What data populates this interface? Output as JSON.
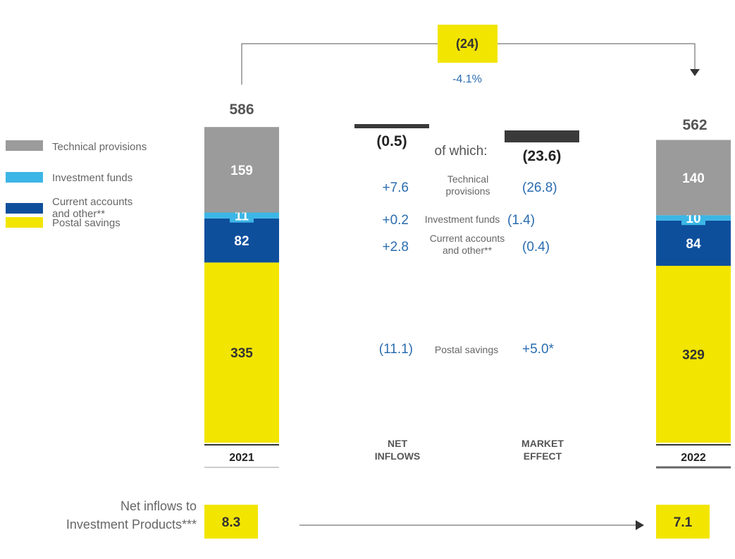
{
  "chart_data": {
    "type": "bar",
    "title": "",
    "stack_order": [
      "Postal savings",
      "Current accounts and other**",
      "Investment funds",
      "Technical provisions"
    ],
    "series": [
      {
        "name": "Technical provisions",
        "color": "#9b9b9b",
        "values": [
          159,
          140
        ],
        "label_color": "#ffffff"
      },
      {
        "name": "Investment funds",
        "color": "#3cb6e6",
        "values": [
          11,
          10
        ],
        "label_color": "#ffffff"
      },
      {
        "name": "Current accounts and other**",
        "color": "#0e4f9c",
        "values": [
          82,
          84
        ],
        "label_color": "#ffffff"
      },
      {
        "name": "Postal savings",
        "color": "#f2e500",
        "values": [
          335,
          329
        ],
        "label_color": "#333333"
      }
    ],
    "legend_labels": [
      {
        "line1": "Technical provisions",
        "line2": ""
      },
      {
        "line1": "Investment funds",
        "line2": ""
      },
      {
        "line1": "Current accounts",
        "line2": "and other**"
      },
      {
        "line1": "Postal savings",
        "line2": ""
      }
    ],
    "years": [
      "2021",
      "2022"
    ],
    "totals": [
      "586",
      "562"
    ],
    "ylim": [
      0,
      600
    ],
    "legend_position": "left",
    "change": {
      "value": "(24)",
      "percent": "-4.1%"
    },
    "bridge": {
      "net_inflows": {
        "label_line1": "NET",
        "label_line2": "INFLOWS",
        "total": "(0.5)"
      },
      "market_effect": {
        "label_line1": "MARKET",
        "label_line2": "EFFECT",
        "total": "(23.6)"
      },
      "of_which": "of which:",
      "rows": [
        {
          "label_line1": "Technical",
          "label_line2": "provisions",
          "net": "+7.6",
          "market": "(26.8)"
        },
        {
          "label_line1": "Investment funds",
          "label_line2": "",
          "net": "+0.2",
          "market": "(1.4)"
        },
        {
          "label_line1": "Current accounts",
          "label_line2": "and other**",
          "net": "+2.8",
          "market": "(0.4)"
        },
        {
          "label_line1": "Postal savings",
          "label_line2": "",
          "net": "(11.1)",
          "market": "+5.0*"
        }
      ]
    },
    "investment_inflows": {
      "title_line1": "Net inflows to",
      "title_line2": "Investment Products***",
      "values": [
        "8.3",
        "7.1"
      ]
    }
  }
}
